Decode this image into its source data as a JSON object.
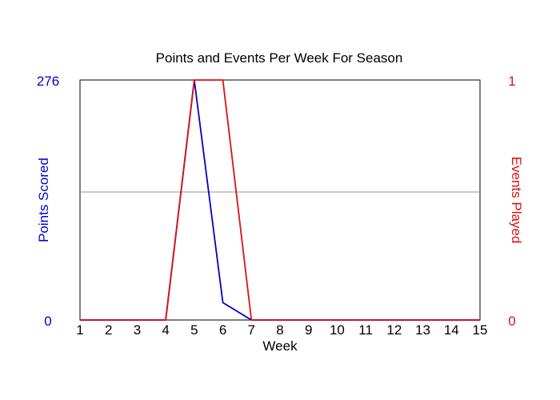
{
  "chart_data": {
    "type": "line",
    "title": "Points and Events Per Week For Season",
    "xlabel": "Week",
    "ylabel_left": "Points Scored",
    "ylabel_right": "Events Played",
    "x": [
      1,
      2,
      3,
      4,
      5,
      6,
      7,
      8,
      9,
      10,
      11,
      12,
      13,
      14,
      15
    ],
    "xlim": [
      1,
      15
    ],
    "ylim_left": [
      0,
      276
    ],
    "ylim_right": [
      0,
      1
    ],
    "left_tick_labels": [
      "276",
      "0"
    ],
    "right_tick_labels": [
      "1",
      "0"
    ],
    "grid": "single horizontal midline",
    "colors": {
      "left_axis": "#0000cc",
      "right_axis": "#dd1111",
      "points_series": "#0000cc",
      "events_series": "#dd1111",
      "midline": "#9090a8",
      "frame": "#000000"
    },
    "series": [
      {
        "axis": "left",
        "color": "#0000cc",
        "values": [
          0,
          0,
          0,
          0,
          276,
          20,
          0,
          0,
          0,
          0,
          0,
          0,
          0,
          0,
          0
        ]
      },
      {
        "axis": "right",
        "color": "#dd1111",
        "values": [
          0,
          0,
          0,
          0,
          1,
          1,
          0,
          0,
          0,
          0,
          0,
          0,
          0,
          0,
          0
        ]
      }
    ]
  }
}
